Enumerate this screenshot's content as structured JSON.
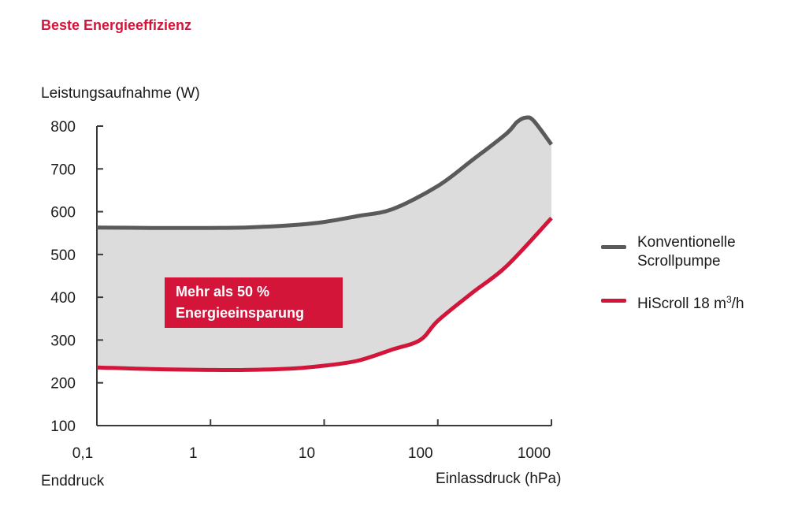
{
  "header": {
    "title": "Beste Energieeffizienz"
  },
  "colors": {
    "accent": "#d4153a",
    "conventional": "#5a5a5a",
    "hiscroll": "#d4153a",
    "band": "#dcdcdc",
    "axis": "#3a3a3a"
  },
  "chart_data": {
    "type": "line",
    "title": "",
    "ylabel": "Leistungsaufnahme (W)",
    "xlabel_left": "Enddruck",
    "xlabel_right": "Einlassdruck (hPa)",
    "x_scale": "log",
    "xlim": [
      0.1,
      1000
    ],
    "ylim": [
      100,
      800
    ],
    "x_ticks": [
      0.1,
      1,
      10,
      100,
      1000
    ],
    "x_tick_labels": [
      "0,1",
      "1",
      "10",
      "100",
      "1000"
    ],
    "y_ticks": [
      100,
      200,
      300,
      400,
      500,
      600,
      700,
      800
    ],
    "y_tick_labels": [
      "100",
      "200",
      "300",
      "400",
      "500",
      "600",
      "700",
      "800"
    ],
    "fill_between_series": true,
    "series": [
      {
        "name": "Konventionelle Scrollpumpe",
        "color": "#5a5a5a",
        "x": [
          0.1,
          0.3,
          1,
          2,
          5,
          10,
          20,
          40,
          100,
          200,
          400,
          500,
          600,
          700,
          1000
        ],
        "y": [
          563,
          562,
          562,
          563,
          568,
          576,
          590,
          606,
          660,
          720,
          782,
          810,
          820,
          812,
          757
        ]
      },
      {
        "name": "HiScroll 18 m³/h",
        "color": "#d4153a",
        "x": [
          0.1,
          0.3,
          1,
          2,
          5,
          10,
          20,
          40,
          70,
          100,
          200,
          400,
          1000
        ],
        "y": [
          236,
          232,
          230,
          230,
          233,
          240,
          252,
          278,
          300,
          345,
          410,
          472,
          585
        ]
      }
    ],
    "annotation": "Mehr als 50 %\nEnergieeinsparung",
    "legend": {
      "placement": "right",
      "items": [
        {
          "label_line1": "Konventionelle",
          "label_line2": "Scrollpumpe",
          "color": "#5a5a5a"
        },
        {
          "label_prefix": "HiScroll 18 m",
          "label_sup": "3",
          "label_suffix": "/h",
          "color": "#d4153a"
        }
      ]
    }
  }
}
